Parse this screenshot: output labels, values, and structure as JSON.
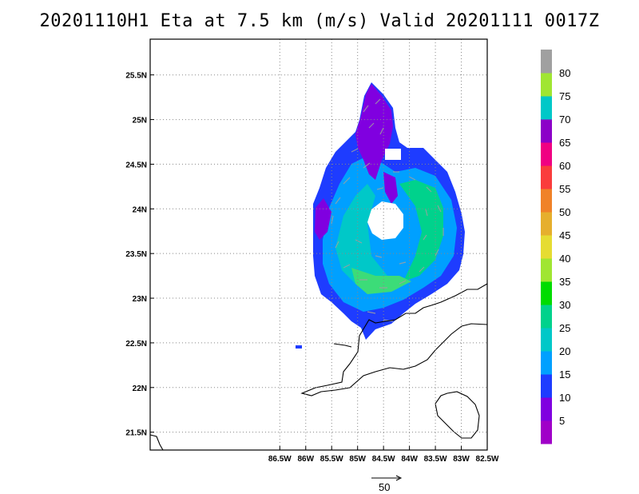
{
  "title": "20201110H1 Eta at 7.5 km (m/s) Valid 20201111  0017Z",
  "map": {
    "lon_range": [
      -89.0,
      -82.5
    ],
    "lat_range": [
      21.3,
      25.9
    ],
    "lon_ticks": [
      "86.5W",
      "86W",
      "85.5W",
      "85W",
      "84.5W",
      "84W",
      "83.5W",
      "83W",
      "82.5W"
    ],
    "lon_tick_values": [
      -86.5,
      -86.0,
      -85.5,
      -85.0,
      -84.5,
      -84.0,
      -83.5,
      -83.0,
      -82.5
    ],
    "lat_ticks": [
      "25.5N",
      "25N",
      "24.5N",
      "24N",
      "23.5N",
      "23N",
      "22.5N",
      "22N",
      "21.5N"
    ],
    "lat_tick_values": [
      25.5,
      25.0,
      24.5,
      24.0,
      23.5,
      23.0,
      22.5,
      22.0,
      21.5
    ],
    "grid": "dotted",
    "coastline": "Cuba (northwest)"
  },
  "colorbar": {
    "labels": [
      "5",
      "10",
      "15",
      "20",
      "25",
      "30",
      "35",
      "40",
      "45",
      "50",
      "55",
      "60",
      "65",
      "70",
      "75",
      "80"
    ],
    "colors": [
      "#a000c8",
      "#8000e0",
      "#1e3cff",
      "#00a0ff",
      "#00c8c8",
      "#00d28c",
      "#00dc00",
      "#a0e632",
      "#e6dc32",
      "#e6af2d",
      "#f08228",
      "#fa3c3c",
      "#f00082",
      "#8c00c8",
      "#00c8c8",
      "#a0e632",
      "#a0a0a0"
    ]
  },
  "reference_vector": {
    "label": "50"
  }
}
